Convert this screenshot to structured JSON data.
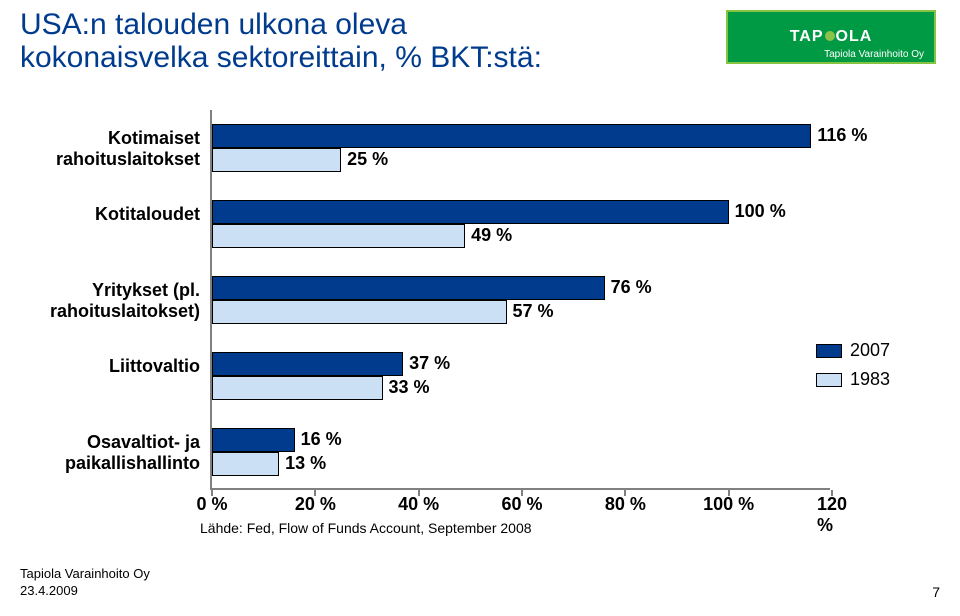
{
  "title_line1": "USA:n talouden ulkona oleva",
  "title_line2": "kokonaisvelka sektoreittain, % BKT:stä:",
  "title_color": "#003b8e",
  "title_fontsize": 30,
  "logo": {
    "brand": "TAPIOLA",
    "sub": "Tapiola Varainhoito Oy"
  },
  "chart": {
    "type": "bar",
    "orientation": "horizontal",
    "grouped": true,
    "x_max": 120,
    "x_tick_step": 20,
    "x_ticks": [
      "0 %",
      "20 %",
      "40 %",
      "60 %",
      "80 %",
      "100 %",
      "120 %"
    ],
    "tick_fontsize": 18,
    "cat_label_fontsize": 18,
    "bar_label_fontsize": 18,
    "legend_fontsize": 18,
    "series": [
      {
        "name": "2007",
        "color": "#003b8e"
      },
      {
        "name": "1983",
        "color": "#cce0f5"
      }
    ],
    "categories": [
      {
        "label": "Kotimaiset\nrahoituslaitokset",
        "values": [
          116,
          25
        ],
        "labels": [
          "116 %",
          "25 %"
        ]
      },
      {
        "label": "Kotitaloudet",
        "values": [
          100,
          49
        ],
        "labels": [
          "100 %",
          "49 %"
        ]
      },
      {
        "label": "Yritykset (pl.\nrahoituslaitokset)",
        "values": [
          76,
          57
        ],
        "labels": [
          "76 %",
          "57 %"
        ]
      },
      {
        "label": "Liittovaltio",
        "values": [
          37,
          33
        ],
        "labels": [
          "37 %",
          "33 %"
        ]
      },
      {
        "label": "Osavaltiot- ja\npaikallishallinto",
        "values": [
          16,
          13
        ],
        "labels": [
          "16 %",
          "13 %"
        ]
      }
    ]
  },
  "source": "Lähde: Fed, Flow of Funds Account, September 2008",
  "footer": {
    "org": "Tapiola Varainhoito Oy",
    "date": "23.4.2009",
    "page": "7"
  }
}
